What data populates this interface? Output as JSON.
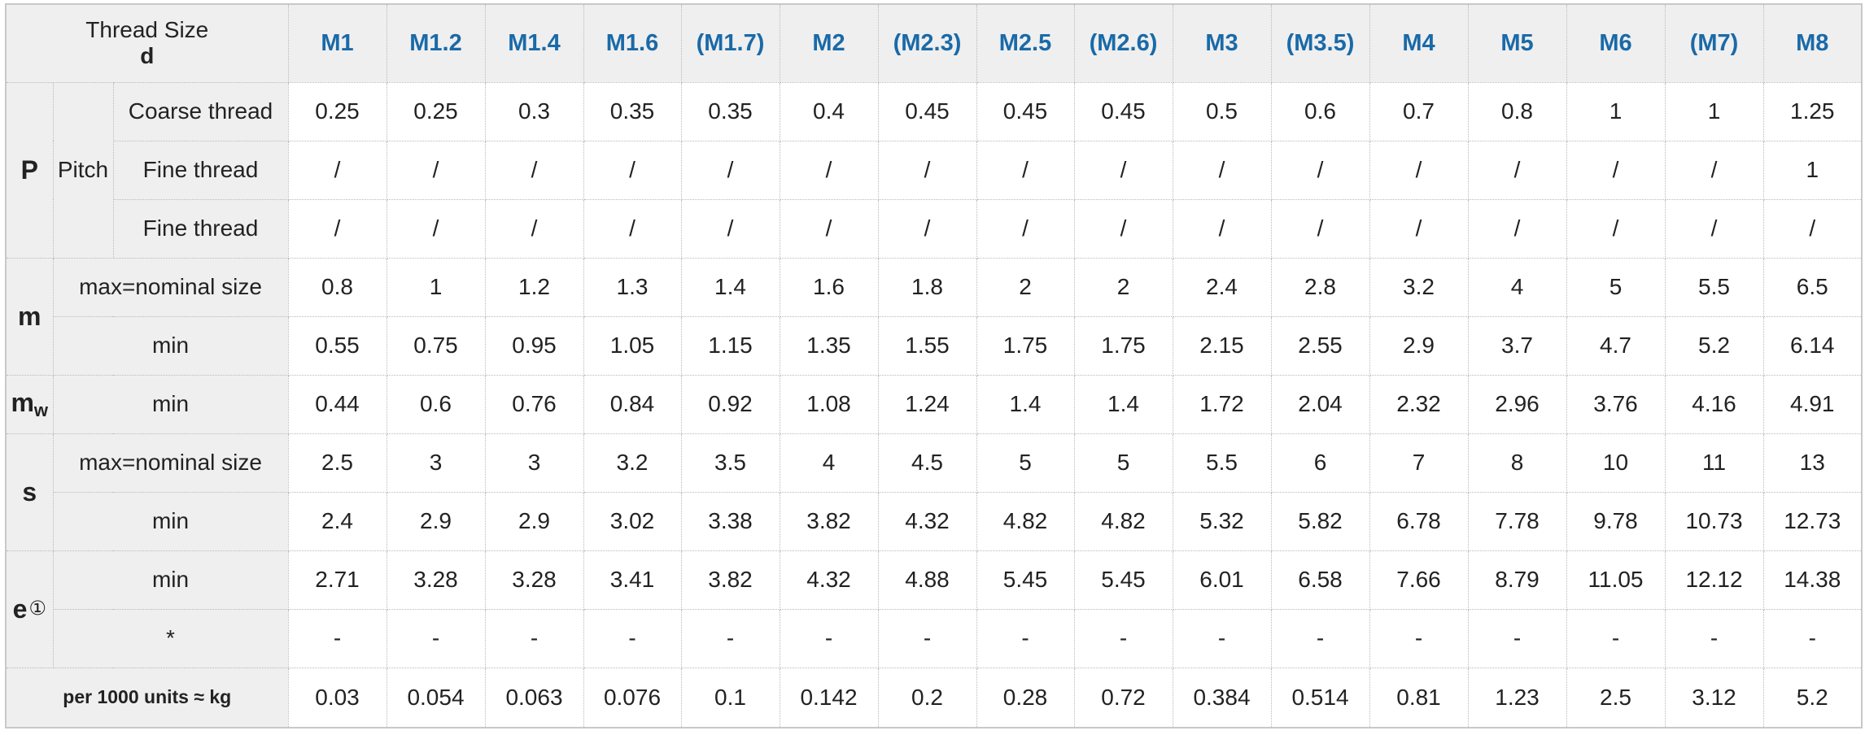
{
  "header": {
    "thread_size_label": "Thread Size",
    "thread_size_symbol": "d",
    "sizes": [
      "M1",
      "M1.2",
      "M1.4",
      "M1.6",
      "(M1.7)",
      "M2",
      "(M2.3)",
      "M2.5",
      "(M2.6)",
      "M3",
      "(M3.5)",
      "M4",
      "M5",
      "M6",
      "(M7)",
      "M8"
    ]
  },
  "groups": {
    "P": {
      "symbol": "P",
      "sub_label": "Pitch"
    },
    "m": {
      "symbol": "m"
    },
    "mw": {
      "symbol": "m",
      "subscript": "w"
    },
    "s": {
      "symbol": "s"
    },
    "e": {
      "symbol": "e",
      "note_mark": "①"
    }
  },
  "rows": {
    "p_coarse": {
      "label": "Coarse thread",
      "values": [
        "0.25",
        "0.25",
        "0.3",
        "0.35",
        "0.35",
        "0.4",
        "0.45",
        "0.45",
        "0.45",
        "0.5",
        "0.6",
        "0.7",
        "0.8",
        "1",
        "1",
        "1.25"
      ]
    },
    "p_fine1": {
      "label": "Fine thread",
      "values": [
        "/",
        "/",
        "/",
        "/",
        "/",
        "/",
        "/",
        "/",
        "/",
        "/",
        "/",
        "/",
        "/",
        "/",
        "/",
        "1"
      ]
    },
    "p_fine2": {
      "label": "Fine thread",
      "values": [
        "/",
        "/",
        "/",
        "/",
        "/",
        "/",
        "/",
        "/",
        "/",
        "/",
        "/",
        "/",
        "/",
        "/",
        "/",
        "/"
      ]
    },
    "m_max": {
      "label": "max=nominal size",
      "values": [
        "0.8",
        "1",
        "1.2",
        "1.3",
        "1.4",
        "1.6",
        "1.8",
        "2",
        "2",
        "2.4",
        "2.8",
        "3.2",
        "4",
        "5",
        "5.5",
        "6.5"
      ]
    },
    "m_min": {
      "label": "min",
      "values": [
        "0.55",
        "0.75",
        "0.95",
        "1.05",
        "1.15",
        "1.35",
        "1.55",
        "1.75",
        "1.75",
        "2.15",
        "2.55",
        "2.9",
        "3.7",
        "4.7",
        "5.2",
        "6.14"
      ]
    },
    "mw_min": {
      "label": "min",
      "values": [
        "0.44",
        "0.6",
        "0.76",
        "0.84",
        "0.92",
        "1.08",
        "1.24",
        "1.4",
        "1.4",
        "1.72",
        "2.04",
        "2.32",
        "2.96",
        "3.76",
        "4.16",
        "4.91"
      ]
    },
    "s_max": {
      "label": "max=nominal size",
      "values": [
        "2.5",
        "3",
        "3",
        "3.2",
        "3.5",
        "4",
        "4.5",
        "5",
        "5",
        "5.5",
        "6",
        "7",
        "8",
        "10",
        "11",
        "13"
      ]
    },
    "s_min": {
      "label": "min",
      "values": [
        "2.4",
        "2.9",
        "2.9",
        "3.02",
        "3.38",
        "3.82",
        "4.32",
        "4.82",
        "4.82",
        "5.32",
        "5.82",
        "6.78",
        "7.78",
        "9.78",
        "10.73",
        "12.73"
      ]
    },
    "e_min": {
      "label": "min",
      "values": [
        "2.71",
        "3.28",
        "3.28",
        "3.41",
        "3.82",
        "4.32",
        "4.88",
        "5.45",
        "5.45",
        "6.01",
        "6.58",
        "7.66",
        "8.79",
        "11.05",
        "12.12",
        "14.38"
      ]
    },
    "e_star": {
      "label": "*",
      "values": [
        "-",
        "-",
        "-",
        "-",
        "-",
        "-",
        "-",
        "-",
        "-",
        "-",
        "-",
        "-",
        "-",
        "-",
        "-",
        "-"
      ]
    },
    "weight": {
      "label": "per 1000 units ≈ kg",
      "values": [
        "0.03",
        "0.054",
        "0.063",
        "0.076",
        "0.1",
        "0.142",
        "0.2",
        "0.28",
        "0.72",
        "0.384",
        "0.514",
        "0.81",
        "1.23",
        "2.5",
        "3.12",
        "5.2"
      ]
    }
  }
}
